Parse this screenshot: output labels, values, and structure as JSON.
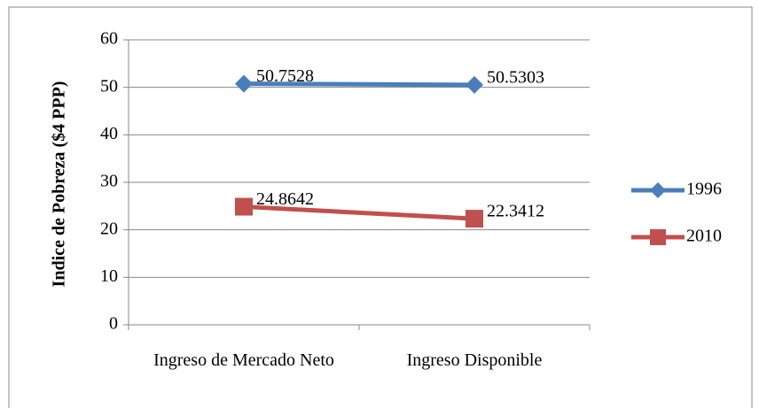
{
  "chart_data": {
    "type": "line",
    "y_label": "Indice de Pobreza ($4 PPP)",
    "categories": [
      "Ingreso de Mercado Neto",
      "Ingreso Disponible"
    ],
    "series": [
      {
        "name": "1996",
        "color": "#4a7ebb",
        "marker": "diamond",
        "values": [
          50.7528,
          50.5303
        ]
      },
      {
        "name": "2010",
        "color": "#c0504d",
        "marker": "square",
        "values": [
          24.8642,
          22.3412
        ]
      }
    ],
    "ylim": [
      0,
      60
    ],
    "yticks": [
      0,
      10,
      20,
      30,
      40,
      50,
      60
    ],
    "grid": true,
    "legend": "right"
  }
}
